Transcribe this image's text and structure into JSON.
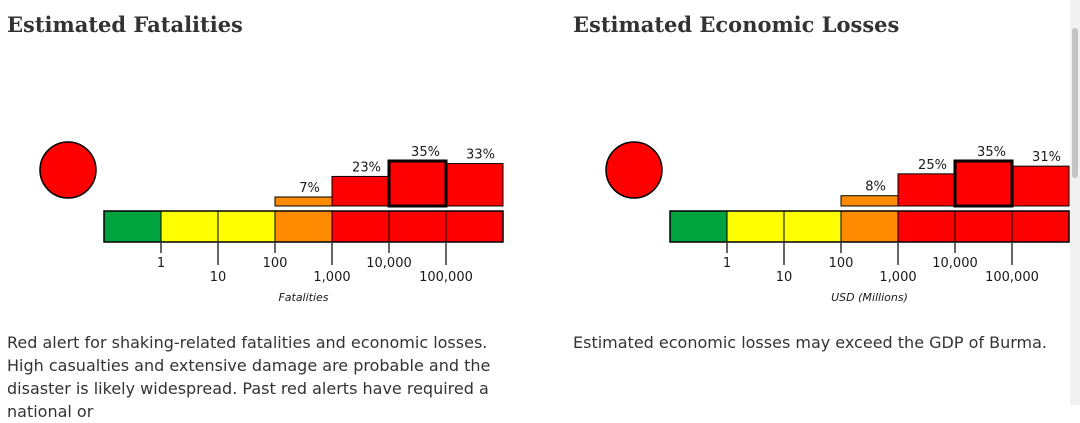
{
  "colors": {
    "green": "#00a33d",
    "yellow": "#ffff00",
    "orange": "#ff8c00",
    "red": "#ff0000",
    "outline": "#000000"
  },
  "fatalities": {
    "heading": "Estimated Fatalities",
    "alert_level": "red",
    "description": "Red alert for shaking-related fatalities and economic losses. High casualties and extensive damage are probable and the disaster is likely widespread. Past red alerts have required a national or"
  },
  "economic": {
    "heading": "Estimated Economic Losses",
    "alert_level": "red",
    "description": "Estimated economic losses may exceed the GDP of Burma."
  },
  "chart_data": [
    {
      "type": "bar",
      "categories": [
        "0-1",
        "1-10",
        "10-100",
        "100-1,000",
        "1,000-10,000",
        "10,000-100,000",
        "100,000+"
      ],
      "scale_colors": [
        "green",
        "yellow",
        "yellow",
        "orange",
        "red",
        "red",
        "red"
      ],
      "series": [
        {
          "values": [
            0,
            0,
            0,
            7,
            23,
            35,
            33
          ]
        }
      ],
      "value_labels": [
        "",
        "",
        "",
        "7%",
        "23%",
        "35%",
        "33%"
      ],
      "highlighted_category": "10,000-100,000",
      "xlabel": "Fatalities",
      "tick_labels": [
        "1",
        "10",
        "100",
        "1,000",
        "10,000",
        "100,000"
      ],
      "ylim": [
        0,
        35
      ]
    },
    {
      "type": "bar",
      "categories": [
        "0-1",
        "1-10",
        "10-100",
        "100-1,000",
        "1,000-10,000",
        "10,000-100,000",
        "100,000+"
      ],
      "scale_colors": [
        "green",
        "yellow",
        "yellow",
        "orange",
        "red",
        "red",
        "red"
      ],
      "series": [
        {
          "values": [
            0,
            0,
            0,
            8,
            25,
            35,
            31
          ]
        }
      ],
      "value_labels": [
        "",
        "",
        "",
        "8%",
        "25%",
        "35%",
        "31%"
      ],
      "highlighted_category": "10,000-100,000",
      "xlabel": "USD (Millions)",
      "tick_labels": [
        "1",
        "10",
        "100",
        "1,000",
        "10,000",
        "100,000"
      ],
      "ylim": [
        0,
        35
      ]
    }
  ]
}
